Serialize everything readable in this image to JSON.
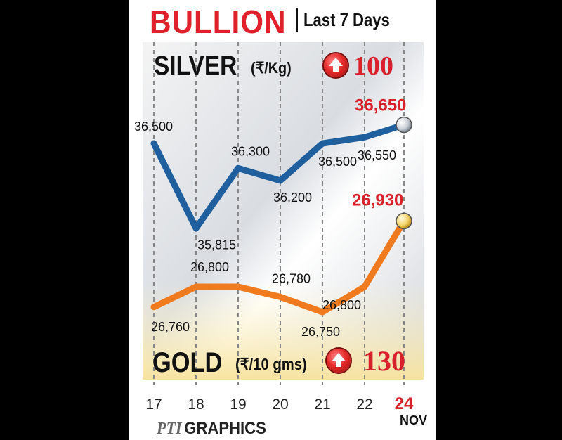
{
  "header": {
    "title": "BULLION",
    "subtitle": "Last 7 Days"
  },
  "silver": {
    "label": "SILVER",
    "unit": "(₹/Kg)",
    "change": "100",
    "change_direction_icon": "up-arrow-icon"
  },
  "gold": {
    "label": "GOLD",
    "unit": "(₹/10 gms)",
    "change": "130",
    "change_direction_icon": "up-arrow-icon"
  },
  "x_month": "NOV",
  "credit": {
    "brand": "PTI",
    "text": "GRAPHICS"
  },
  "colors": {
    "silver_line": "#1f5f9e",
    "gold_line": "#f07a1e",
    "highlight": "#d9212b",
    "title": "#e0202a"
  },
  "chart_data": {
    "type": "line",
    "categories": [
      "17",
      "18",
      "19",
      "20",
      "21",
      "22",
      "24"
    ],
    "series": [
      {
        "name": "SILVER",
        "values": [
          36500,
          35815,
          36300,
          36200,
          36500,
          36550,
          36650
        ],
        "labels": [
          "36,500",
          "35,815",
          "36,300",
          "36,200",
          "36,500",
          "36,550",
          "36,650"
        ]
      },
      {
        "name": "GOLD",
        "values": [
          26760,
          26800,
          26800,
          26780,
          26750,
          26800,
          26930
        ],
        "labels": [
          "26,760",
          "26,800",
          "",
          "26,780",
          "26,750",
          "26,800",
          "26,930"
        ]
      }
    ],
    "grid": true,
    "xlabel": "NOV"
  }
}
